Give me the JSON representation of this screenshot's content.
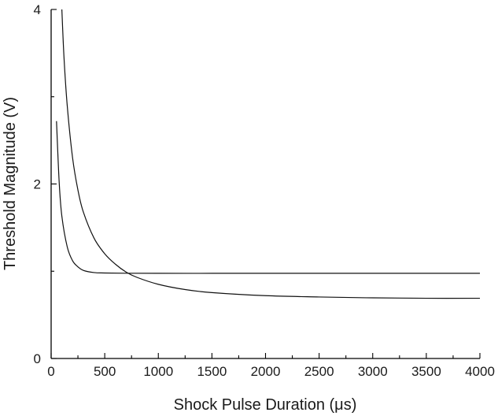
{
  "chart_data": {
    "type": "line",
    "xlabel": "Shock Pulse Duration (μs)",
    "ylabel": "Threshold Magnitude (V)",
    "xlim": [
      0,
      4000
    ],
    "ylim": [
      0,
      4
    ],
    "xticks": [
      0,
      500,
      1000,
      1500,
      2000,
      2500,
      3000,
      3500,
      4000
    ],
    "yticks": [
      0,
      2,
      4
    ],
    "grid": false,
    "legend": "none",
    "series": [
      {
        "x": [
          50,
          75,
          100,
          150,
          200,
          250,
          300,
          400,
          500,
          700,
          1000,
          1500,
          2000,
          3000,
          4000
        ],
        "y": [
          2.72,
          2.02,
          1.63,
          1.28,
          1.12,
          1.05,
          1.01,
          0.985,
          0.98,
          0.977,
          0.976,
          0.976,
          0.976,
          0.976,
          0.976
        ]
      },
      {
        "x": [
          100,
          120,
          150,
          200,
          250,
          300,
          400,
          500,
          600,
          700,
          800,
          1000,
          1250,
          1500,
          2000,
          2500,
          3000,
          3500,
          4000
        ],
        "y": [
          4.0,
          3.45,
          2.9,
          2.3,
          1.93,
          1.68,
          1.38,
          1.2,
          1.08,
          0.99,
          0.93,
          0.85,
          0.79,
          0.755,
          0.72,
          0.705,
          0.695,
          0.69,
          0.69
        ]
      }
    ]
  }
}
